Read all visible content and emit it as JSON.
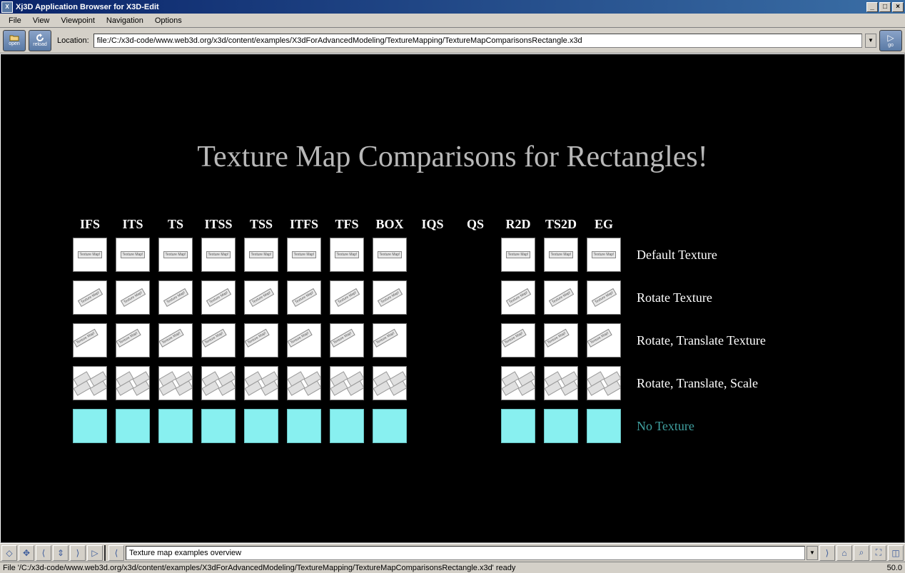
{
  "window": {
    "title": "Xj3D Application Browser for X3D-Edit",
    "app_icon_text": "X"
  },
  "menu": {
    "file": "File",
    "view": "View",
    "viewpoint": "Viewpoint",
    "navigation": "Navigation",
    "options": "Options"
  },
  "toolbar": {
    "open_label": "open",
    "reload_label": "reload",
    "location_label": "Location:",
    "location_value": "file:/C:/x3d-code/www.web3d.org/x3d/content/examples/X3dForAdvancedModeling/TextureMapping/TextureMapComparisonsRectangle.x3d",
    "go_label": "go"
  },
  "scene": {
    "title": "Texture Map Comparisons for Rectangles!",
    "columns": [
      "IFS",
      "ITS",
      "TS",
      "ITSS",
      "TSS",
      "ITFS",
      "TFS",
      "BOX",
      "IQS",
      "QS",
      "R2D",
      "TS2D",
      "EG"
    ],
    "thumb_text": "Texture Map!",
    "rows": [
      {
        "label": "Default Texture",
        "style": "default",
        "class": ""
      },
      {
        "label": "Rotate Texture",
        "style": "rot",
        "class": ""
      },
      {
        "label": "Rotate, Translate Texture",
        "style": "rottr",
        "class": ""
      },
      {
        "label": "Rotate, Translate, Scale",
        "style": "rottrsc",
        "class": ""
      },
      {
        "label": "No Texture",
        "style": "notex",
        "class": "notex-label"
      }
    ],
    "present_cols": [
      0,
      1,
      2,
      3,
      4,
      5,
      6,
      7,
      10,
      11,
      12
    ],
    "colors": {
      "background": "#000000",
      "title_color": "#b8b8b8",
      "header_color": "#ffffff",
      "label_color": "#ffffff",
      "notex_fill": "#88f0f0",
      "notex_label_color": "#40a0a0",
      "thumb_bg": "#ffffff"
    }
  },
  "bottombar": {
    "viewpoint_value": "Texture map examples overview",
    "icons": {
      "examine": "◇",
      "pan": "✥",
      "walk": "⟨",
      "person": "⇕",
      "fly": "⟩",
      "play": "▷",
      "prev": "⟨",
      "next": "⟩",
      "home": "⌂",
      "find": "⌕",
      "fit": "⛶",
      "wire": "◫"
    }
  },
  "statusbar": {
    "text": "File '/C:/x3d-code/www.web3d.org/x3d/content/examples/X3dForAdvancedModeling/TextureMapping/TextureMapComparisonsRectangle.x3d' ready",
    "fps": "50.0"
  }
}
